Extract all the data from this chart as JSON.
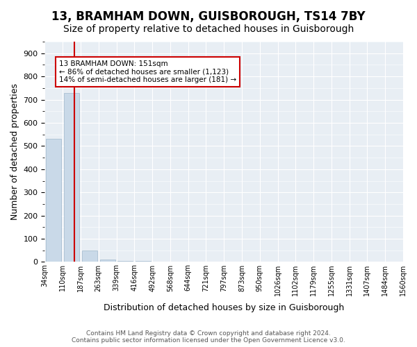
{
  "title": "13, BRAMHAM DOWN, GUISBOROUGH, TS14 7BY",
  "subtitle": "Size of property relative to detached houses in Guisborough",
  "xlabel": "Distribution of detached houses by size in Guisborough",
  "ylabel": "Number of detached properties",
  "tick_labels": [
    "34sqm",
    "110sqm",
    "187sqm",
    "263sqm",
    "339sqm",
    "416sqm",
    "492sqm",
    "568sqm",
    "644sqm",
    "721sqm",
    "797sqm",
    "873sqm",
    "950sqm",
    "1026sqm",
    "1102sqm",
    "1179sqm",
    "1255sqm",
    "1331sqm",
    "1407sqm",
    "1484sqm",
    "1560sqm"
  ],
  "bar_values": [
    530,
    730,
    50,
    10,
    5,
    5,
    0,
    0,
    0,
    0,
    0,
    0,
    0,
    0,
    0,
    0,
    0,
    0,
    0,
    0
  ],
  "bar_color": "#c9d9e8",
  "bar_edgecolor": "#a0b8cc",
  "vline_color": "#cc0000",
  "vline_x": 1.14,
  "annotation_text": "13 BRAMHAM DOWN: 151sqm\n← 86% of detached houses are smaller (1,123)\n14% of semi-detached houses are larger (181) →",
  "annotation_box_color": "#cc0000",
  "ylim": [
    0,
    950
  ],
  "yticks": [
    0,
    100,
    200,
    300,
    400,
    500,
    600,
    700,
    800,
    900
  ],
  "background_color": "#e8eef4",
  "grid_color": "#ffffff",
  "footer_text": "Contains HM Land Registry data © Crown copyright and database right 2024.\nContains public sector information licensed under the Open Government Licence v3.0.",
  "title_fontsize": 12,
  "subtitle_fontsize": 10,
  "xlabel_fontsize": 9,
  "ylabel_fontsize": 9
}
